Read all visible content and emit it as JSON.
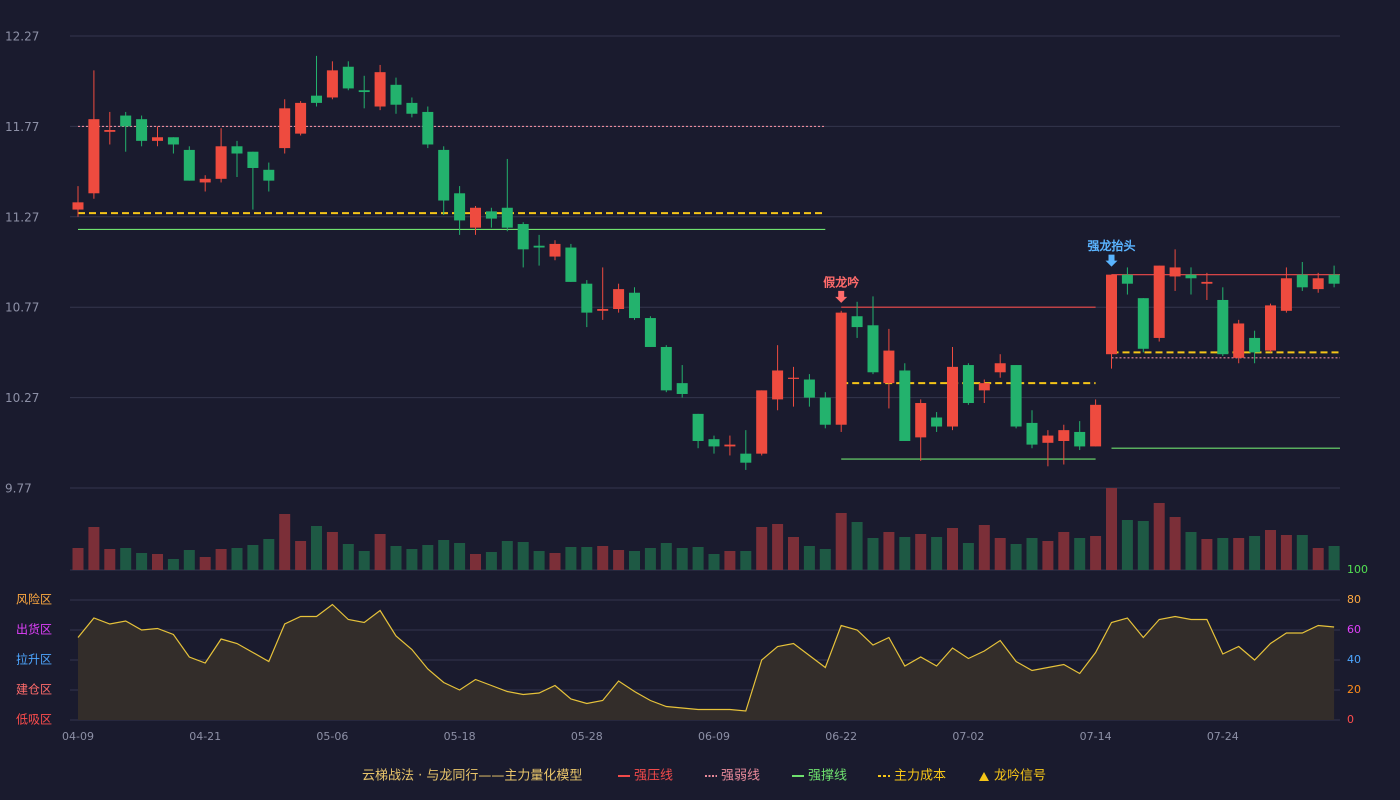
{
  "chart_data": {
    "type": "candlestick",
    "categories": [
      "04-09",
      null,
      null,
      null,
      null,
      null,
      null,
      null,
      "04-21",
      null,
      null,
      null,
      null,
      null,
      null,
      null,
      "05-06",
      null,
      null,
      null,
      null,
      null,
      null,
      null,
      "05-18",
      null,
      null,
      null,
      null,
      null,
      null,
      null,
      "05-28",
      null,
      null,
      null,
      null,
      null,
      null,
      null,
      "06-09",
      null,
      null,
      null,
      null,
      null,
      null,
      null,
      "06-22",
      null,
      null,
      null,
      null,
      null,
      null,
      null,
      "07-02",
      null,
      null,
      null,
      null,
      null,
      null,
      null,
      "07-14",
      null,
      null,
      null,
      null,
      null,
      null,
      null,
      "07-24",
      null,
      null,
      null,
      null,
      null,
      null,
      null
    ],
    "open": [
      11.31,
      11.4,
      11.74,
      11.83,
      11.81,
      11.69,
      11.71,
      11.64,
      11.46,
      11.48,
      11.66,
      11.63,
      11.53,
      11.65,
      11.73,
      11.94,
      11.93,
      12.1,
      11.97,
      11.88,
      12.0,
      11.9,
      11.85,
      11.64,
      11.4,
      11.21,
      11.3,
      11.32,
      11.23,
      11.11,
      11.05,
      11.1,
      10.9,
      10.75,
      10.76,
      10.85,
      10.71,
      10.55,
      10.35,
      10.18,
      10.04,
      10.0,
      9.96,
      9.96,
      10.26,
      10.38,
      10.37,
      10.27,
      10.12,
      10.72,
      10.67,
      10.35,
      10.42,
      10.05,
      10.16,
      10.11,
      10.45,
      10.31,
      10.41,
      10.45,
      10.13,
      10.02,
      10.03,
      10.08,
      10.0,
      10.51,
      10.95,
      10.82,
      10.6,
      10.94,
      10.95,
      10.9,
      10.81,
      10.49,
      10.6,
      10.53,
      10.75,
      10.95,
      10.87,
      10.95
    ],
    "high": [
      11.44,
      12.08,
      11.85,
      11.85,
      11.83,
      11.77,
      11.71,
      11.66,
      11.5,
      11.76,
      11.69,
      11.63,
      11.57,
      11.92,
      11.91,
      12.16,
      12.13,
      12.13,
      12.05,
      12.11,
      12.04,
      11.93,
      11.88,
      11.66,
      11.44,
      11.33,
      11.32,
      11.59,
      11.24,
      11.17,
      11.14,
      11.12,
      10.92,
      10.99,
      10.9,
      10.88,
      10.72,
      10.56,
      10.45,
      10.18,
      10.06,
      10.06,
      10.09,
      10.31,
      10.56,
      10.44,
      10.4,
      10.3,
      10.75,
      10.8,
      10.83,
      10.65,
      10.46,
      10.26,
      10.19,
      10.55,
      10.46,
      10.37,
      10.51,
      10.45,
      10.2,
      10.09,
      10.12,
      10.14,
      10.26,
      10.95,
      10.99,
      10.82,
      11.0,
      11.09,
      10.99,
      10.96,
      10.88,
      10.7,
      10.64,
      10.79,
      10.99,
      11.02,
      10.96,
      11.0
    ],
    "low": [
      11.27,
      11.37,
      11.67,
      11.63,
      11.66,
      11.66,
      11.62,
      11.47,
      11.41,
      11.46,
      11.49,
      11.31,
      11.41,
      11.62,
      11.72,
      11.88,
      11.92,
      11.97,
      11.87,
      11.86,
      11.84,
      11.82,
      11.65,
      11.28,
      11.17,
      11.17,
      11.21,
      11.19,
      10.99,
      11.0,
      11.03,
      10.91,
      10.66,
      10.7,
      10.74,
      10.7,
      10.55,
      10.3,
      10.27,
      9.99,
      9.96,
      9.95,
      9.87,
      9.95,
      10.2,
      10.22,
      10.22,
      10.1,
      10.08,
      10.6,
      10.4,
      10.21,
      10.03,
      9.92,
      10.08,
      10.09,
      10.23,
      10.24,
      10.38,
      10.1,
      9.99,
      9.89,
      9.9,
      9.98,
      10.0,
      10.43,
      10.84,
      10.52,
      10.58,
      10.86,
      10.84,
      10.81,
      10.5,
      10.46,
      10.46,
      10.52,
      10.74,
      10.86,
      10.85,
      10.88
    ],
    "close": [
      11.35,
      11.81,
      11.75,
      11.77,
      11.69,
      11.71,
      11.67,
      11.47,
      11.48,
      11.66,
      11.62,
      11.54,
      11.47,
      11.87,
      11.9,
      11.9,
      12.08,
      11.98,
      11.96,
      12.07,
      11.89,
      11.84,
      11.67,
      11.36,
      11.25,
      11.32,
      11.26,
      11.21,
      11.09,
      11.1,
      11.12,
      10.91,
      10.74,
      10.76,
      10.87,
      10.71,
      10.55,
      10.31,
      10.29,
      10.03,
      10.0,
      10.01,
      9.91,
      10.31,
      10.42,
      10.38,
      10.27,
      10.12,
      10.74,
      10.66,
      10.41,
      10.53,
      10.03,
      10.24,
      10.11,
      10.44,
      10.24,
      10.35,
      10.46,
      10.11,
      10.01,
      10.06,
      10.09,
      10.0,
      10.23,
      10.95,
      10.9,
      10.54,
      11.0,
      10.99,
      10.93,
      10.91,
      10.51,
      10.68,
      10.52,
      10.78,
      10.93,
      10.88,
      10.93,
      10.9
    ],
    "up_color": "#ee4b3f",
    "down_color": "#23b26d",
    "ylim": [
      9.77,
      12.27
    ],
    "yticks": [
      9.77,
      10.27,
      10.77,
      11.27,
      11.77,
      12.27
    ],
    "volume": [
      22,
      43,
      21,
      22,
      17,
      16,
      11,
      20,
      13,
      21,
      22,
      25,
      31,
      56,
      29,
      44,
      38,
      26,
      19,
      36,
      24,
      21,
      25,
      30,
      27,
      16,
      18,
      29,
      28,
      19,
      17,
      23,
      23,
      24,
      20,
      19,
      22,
      27,
      22,
      23,
      16,
      19,
      19,
      43,
      46,
      33,
      24,
      21,
      57,
      48,
      32,
      38,
      33,
      36,
      33,
      42,
      27,
      45,
      32,
      26,
      32,
      29,
      38,
      32,
      34,
      82,
      50,
      49,
      67,
      53,
      38,
      31,
      32,
      32,
      34,
      40,
      35,
      35,
      22,
      24
    ],
    "volume_up_color": "#7b2f38",
    "volume_down_color": "#1e5944",
    "indicator": {
      "color": "#e6c23a",
      "fill": "#332d2a",
      "values": [
        55,
        68,
        64,
        66,
        60,
        61,
        57,
        42,
        38,
        54,
        51,
        45,
        39,
        64,
        69,
        69,
        77,
        67,
        65,
        73,
        56,
        47,
        34,
        25,
        20,
        27,
        23,
        19,
        17,
        18,
        23,
        14,
        11,
        13,
        26,
        19,
        13,
        9,
        8,
        7,
        7,
        7,
        6,
        40,
        49,
        51,
        43,
        35,
        63,
        60,
        50,
        55,
        36,
        42,
        36,
        48,
        41,
        46,
        53,
        39,
        33,
        35,
        37,
        31,
        45,
        65,
        68,
        55,
        67,
        69,
        67,
        67,
        44,
        49,
        40,
        51,
        58,
        58,
        63,
        62
      ],
      "ylim": [
        0,
        100
      ],
      "yticks": [
        {
          "value": 0,
          "color": "#ff4d4d"
        },
        {
          "value": 20,
          "color": "#ff8c1a"
        },
        {
          "value": 40,
          "color": "#4da6ff"
        },
        {
          "value": 60,
          "color": "#e040fb"
        },
        {
          "value": 80,
          "color": "#ffa940"
        },
        {
          "value": 100,
          "color": "#52e052"
        }
      ],
      "zones": [
        {
          "label": "风险区",
          "value": 80,
          "color": "#ffa940"
        },
        {
          "label": "出货区",
          "value": 60,
          "color": "#e040fb"
        },
        {
          "label": "拉升区",
          "value": 40,
          "color": "#4da6ff"
        },
        {
          "label": "建仓区",
          "value": 20,
          "color": "#ff6b6b"
        },
        {
          "label": "低吸区",
          "value": 0,
          "color": "#ff4d4d"
        }
      ]
    },
    "lines": [
      {
        "name": "强压线",
        "color": "#f04a4a",
        "style": "solid",
        "segments": [
          {
            "start": 48,
            "end": 64,
            "value": 10.77
          },
          {
            "start": 65,
            "end": 79,
            "value": 10.95
          }
        ]
      },
      {
        "name": "强弱线",
        "color": "#e88a9a",
        "style": "dotted",
        "segments": [
          {
            "start": 0,
            "end": 47,
            "value": 11.77
          },
          {
            "start": 65,
            "end": 79,
            "value": 10.49
          }
        ]
      },
      {
        "name": "强撑线",
        "color": "#6ee06e",
        "style": "solid",
        "segments": [
          {
            "start": 0,
            "end": 47,
            "value": 11.2
          },
          {
            "start": 48,
            "end": 64,
            "value": 9.93
          },
          {
            "start": 65,
            "end": 79,
            "value": 9.99
          }
        ]
      },
      {
        "name": "主力成本",
        "color": "#f5c518",
        "style": "dashed",
        "segments": [
          {
            "start": 0,
            "end": 47,
            "value": 11.29
          },
          {
            "start": 48,
            "end": 64,
            "value": 10.35
          },
          {
            "start": 65,
            "end": 79,
            "value": 10.52
          }
        ]
      }
    ],
    "signals": [
      {
        "index": 48,
        "label": "假龙吟",
        "color": "#ff6b6b"
      },
      {
        "index": 65,
        "label": "强龙抬头",
        "color": "#5ab4ff"
      }
    ],
    "legend_title": "云梯战法 · 与龙同行——主力量化模型",
    "signal_legend": {
      "name": "龙吟信号",
      "color": "#f5c518"
    }
  }
}
